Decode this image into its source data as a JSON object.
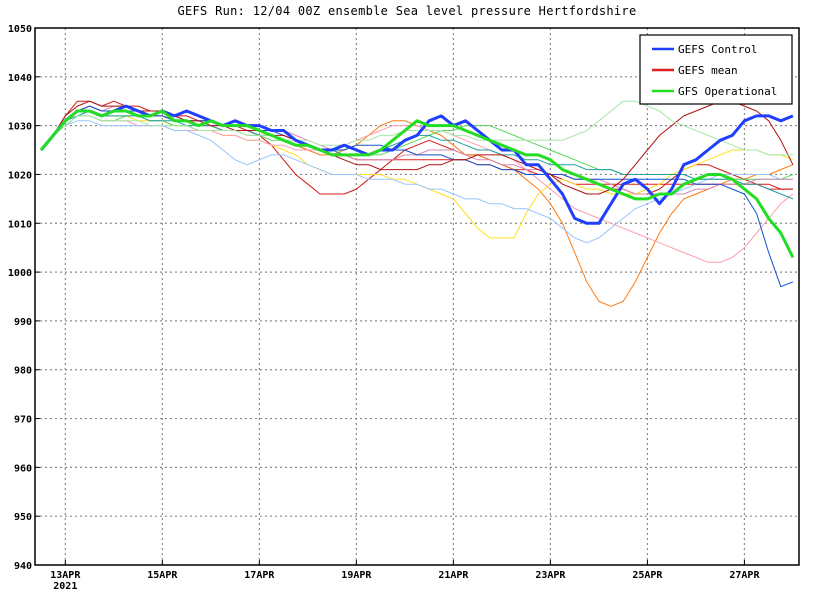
{
  "chart_data": {
    "type": "line",
    "title": "GEFS Run: 12/04 00Z ensemble Sea level pressure Hertfordshire",
    "xlabel": "",
    "ylabel": "",
    "x_range": [
      "2021-04-12T09:00",
      "2021-04-28T03:00"
    ],
    "ylim": [
      940,
      1050
    ],
    "yticks": [
      940,
      950,
      960,
      970,
      980,
      990,
      1000,
      1010,
      1020,
      1030,
      1040,
      1050
    ],
    "ytick_labels": [
      "940",
      "950",
      "960",
      "970",
      "980",
      "990",
      "1000",
      "1010",
      "1020",
      "1030",
      "1040",
      "1050"
    ],
    "xticks": [
      "2021-04-13",
      "2021-04-15",
      "2021-04-17",
      "2021-04-19",
      "2021-04-21",
      "2021-04-23",
      "2021-04-25",
      "2021-04-27"
    ],
    "xtick_labels": [
      "13APR",
      "15APR",
      "17APR",
      "19APR",
      "21APR",
      "23APR",
      "25APR",
      "27APR"
    ],
    "xtick_sublabel": "2021",
    "grid": true,
    "legend_position": "top-right",
    "x": [
      "2021-04-12T12:00",
      "2021-04-12T18:00",
      "2021-04-13T00:00",
      "2021-04-13T06:00",
      "2021-04-13T12:00",
      "2021-04-13T18:00",
      "2021-04-14T00:00",
      "2021-04-14T06:00",
      "2021-04-14T12:00",
      "2021-04-14T18:00",
      "2021-04-15T00:00",
      "2021-04-15T06:00",
      "2021-04-15T12:00",
      "2021-04-15T18:00",
      "2021-04-16T00:00",
      "2021-04-16T06:00",
      "2021-04-16T12:00",
      "2021-04-16T18:00",
      "2021-04-17T00:00",
      "2021-04-17T06:00",
      "2021-04-17T12:00",
      "2021-04-17T18:00",
      "2021-04-18T00:00",
      "2021-04-18T06:00",
      "2021-04-18T12:00",
      "2021-04-18T18:00",
      "2021-04-19T00:00",
      "2021-04-19T06:00",
      "2021-04-19T12:00",
      "2021-04-19T18:00",
      "2021-04-20T00:00",
      "2021-04-20T06:00",
      "2021-04-20T12:00",
      "2021-04-20T18:00",
      "2021-04-21T00:00",
      "2021-04-21T06:00",
      "2021-04-21T12:00",
      "2021-04-21T18:00",
      "2021-04-22T00:00",
      "2021-04-22T06:00",
      "2021-04-22T12:00",
      "2021-04-22T18:00",
      "2021-04-23T00:00",
      "2021-04-23T06:00",
      "2021-04-23T12:00",
      "2021-04-23T18:00",
      "2021-04-24T00:00",
      "2021-04-24T06:00",
      "2021-04-24T12:00",
      "2021-04-24T18:00",
      "2021-04-25T00:00",
      "2021-04-25T06:00",
      "2021-04-25T12:00",
      "2021-04-25T18:00",
      "2021-04-26T00:00",
      "2021-04-26T06:00",
      "2021-04-26T12:00",
      "2021-04-26T18:00",
      "2021-04-27T00:00",
      "2021-04-27T06:00",
      "2021-04-27T12:00",
      "2021-04-27T18:00",
      "2021-04-28T00:00"
    ],
    "series": [
      {
        "name": "GEFS Control",
        "color": "#1f3fff",
        "width": 3,
        "legend": true,
        "values": [
          1025,
          1028,
          1031,
          1033,
          1033,
          1032,
          1033,
          1034,
          1033,
          1032,
          1033,
          1032,
          1033,
          1032,
          1031,
          1030,
          1031,
          1030,
          1030,
          1029,
          1029,
          1027,
          1026,
          1025,
          1025,
          1026,
          1025,
          1024,
          1025,
          1025,
          1027,
          1028,
          1031,
          1032,
          1030,
          1031,
          1029,
          1027,
          1025,
          1025,
          1022,
          1022,
          1019,
          1016,
          1011,
          1010,
          1010,
          1014,
          1018,
          1019,
          1017,
          1014,
          1017,
          1022,
          1023,
          1025,
          1027,
          1028,
          1031,
          1032,
          1032,
          1031,
          1032
        ]
      },
      {
        "name": "GEFS mean",
        "color": "#e02020",
        "width": 1,
        "legend": true,
        "values": [
          1025,
          1028,
          1031,
          1033,
          1033,
          1032,
          1033,
          1033,
          1032,
          1032,
          1032,
          1031,
          1031,
          1030,
          1030,
          1029,
          1029,
          1029,
          1028,
          1028,
          1027,
          1026,
          1025,
          1025,
          1024,
          1024,
          1023,
          1023,
          1023,
          1023,
          1023,
          1023,
          1023,
          1023,
          1023,
          1023,
          1022,
          1022,
          1021,
          1021,
          1021,
          1020,
          1020,
          1020,
          1019,
          1019,
          1018,
          1018,
          1018,
          1018,
          1018,
          1018,
          1018,
          1018,
          1018,
          1018,
          1018,
          1018,
          1018,
          1018,
          1017,
          1017,
          1017
        ]
      },
      {
        "name": "GFS Operational",
        "color": "#22dd22",
        "width": 3,
        "legend": true,
        "values": [
          1025,
          1028,
          1031,
          1033,
          1033,
          1032,
          1033,
          1033,
          1032,
          1032,
          1033,
          1031,
          1031,
          1030,
          1031,
          1030,
          1030,
          1030,
          1029,
          1028,
          1027,
          1026,
          1026,
          1025,
          1024,
          1024,
          1024,
          1024,
          1025,
          1027,
          1029,
          1031,
          1030,
          1030,
          1030,
          1029,
          1028,
          1027,
          1026,
          1025,
          1024,
          1024,
          1023,
          1021,
          1020,
          1019,
          1018,
          1017,
          1016,
          1015,
          1015,
          1016,
          1016,
          1018,
          1019,
          1020,
          1020,
          1019,
          1017,
          1015,
          1011,
          1008,
          1003
        ]
      },
      {
        "name": "",
        "color": "#d01818",
        "width": 1,
        "legend": false,
        "values": [
          1025,
          1028,
          1032,
          1035,
          1035,
          1034,
          1035,
          1034,
          1034,
          1033,
          1033,
          1032,
          1032,
          1031,
          1031,
          1030,
          1030,
          1029,
          1028,
          1026,
          1023,
          1020,
          1018,
          1016,
          1016,
          1016,
          1017,
          1019,
          1021,
          1023,
          1025,
          1026,
          1027,
          1026,
          1025,
          1024,
          1024,
          1023,
          1022,
          1021,
          1020,
          1020,
          1020,
          1019,
          1018,
          1018,
          1018,
          1017,
          1017,
          1016,
          1016,
          1017,
          1019,
          1021,
          1022,
          1022,
          1021,
          1020,
          1019,
          1018,
          1018,
          1017,
          1017
        ]
      },
      {
        "name": "",
        "color": "#ff7a10",
        "width": 1,
        "legend": false,
        "values": [
          1025,
          1028,
          1031,
          1033,
          1034,
          1033,
          1033,
          1033,
          1032,
          1032,
          1032,
          1031,
          1031,
          1030,
          1030,
          1029,
          1029,
          1029,
          1029,
          1028,
          1027,
          1026,
          1025,
          1024,
          1024,
          1025,
          1026,
          1028,
          1030,
          1031,
          1031,
          1030,
          1029,
          1028,
          1026,
          1024,
          1024,
          1023,
          1022,
          1021,
          1019,
          1017,
          1014,
          1010,
          1004,
          998,
          994,
          993,
          994,
          998,
          1003,
          1008,
          1012,
          1015,
          1016,
          1017,
          1018,
          1019,
          1019,
          1020,
          1020,
          1021,
          1022
        ]
      },
      {
        "name": "",
        "color": "#ffe020",
        "width": 1,
        "legend": false,
        "values": [
          1025,
          1028,
          1031,
          1033,
          1033,
          1032,
          1032,
          1032,
          1031,
          1031,
          1031,
          1030,
          1030,
          1029,
          1029,
          1028,
          1028,
          1027,
          1027,
          1026,
          1025,
          1024,
          1022,
          1021,
          1020,
          1020,
          1020,
          1020,
          1020,
          1019,
          1019,
          1018,
          1017,
          1016,
          1015,
          1012,
          1009,
          1007,
          1007,
          1007,
          1012,
          1016,
          1018,
          1019,
          1018,
          1017,
          1017,
          1016,
          1016,
          1016,
          1017,
          1018,
          1020,
          1021,
          1022,
          1023,
          1024,
          1025,
          1025,
          1025,
          1024,
          1024,
          1023
        ]
      },
      {
        "name": "",
        "color": "#ff9fb0",
        "width": 1,
        "legend": false,
        "values": [
          1025,
          1028,
          1030,
          1032,
          1032,
          1031,
          1031,
          1031,
          1030,
          1030,
          1030,
          1029,
          1029,
          1029,
          1029,
          1028,
          1028,
          1027,
          1027,
          1026,
          1026,
          1025,
          1025,
          1025,
          1025,
          1026,
          1027,
          1028,
          1029,
          1030,
          1030,
          1030,
          1029,
          1029,
          1028,
          1027,
          1026,
          1025,
          1024,
          1023,
          1021,
          1019,
          1017,
          1015,
          1013,
          1012,
          1011,
          1010,
          1009,
          1008,
          1007,
          1006,
          1005,
          1004,
          1003,
          1002,
          1002,
          1003,
          1005,
          1008,
          1011,
          1014,
          1016
        ]
      },
      {
        "name": "",
        "color": "#99c6ff",
        "width": 1,
        "legend": false,
        "values": [
          1025,
          1028,
          1030,
          1031,
          1031,
          1030,
          1030,
          1030,
          1030,
          1030,
          1030,
          1029,
          1029,
          1028,
          1027,
          1025,
          1023,
          1022,
          1023,
          1024,
          1024,
          1023,
          1022,
          1021,
          1020,
          1020,
          1020,
          1019,
          1019,
          1019,
          1018,
          1018,
          1017,
          1017,
          1016,
          1015,
          1015,
          1014,
          1014,
          1013,
          1013,
          1012,
          1011,
          1009,
          1007,
          1006,
          1007,
          1009,
          1011,
          1013,
          1014,
          1015,
          1016,
          1017,
          1018,
          1019,
          1020,
          1020,
          1020,
          1020,
          1020,
          1019,
          1019
        ]
      },
      {
        "name": "",
        "color": "#58d858",
        "width": 1,
        "legend": false,
        "values": [
          1025,
          1028,
          1030,
          1032,
          1032,
          1031,
          1031,
          1032,
          1032,
          1031,
          1031,
          1030,
          1030,
          1029,
          1029,
          1029,
          1029,
          1028,
          1028,
          1027,
          1027,
          1026,
          1026,
          1025,
          1025,
          1024,
          1024,
          1024,
          1024,
          1025,
          1026,
          1027,
          1028,
          1029,
          1029,
          1030,
          1030,
          1030,
          1029,
          1028,
          1027,
          1026,
          1025,
          1024,
          1023,
          1022,
          1021,
          1021,
          1020,
          1020,
          1020,
          1020,
          1020,
          1020,
          1019,
          1019,
          1019,
          1019,
          1019,
          1019,
          1019,
          1019,
          1020
        ]
      },
      {
        "name": "",
        "color": "#d98ab5",
        "width": 1,
        "legend": false,
        "values": [
          1025,
          1028,
          1031,
          1033,
          1034,
          1033,
          1034,
          1034,
          1033,
          1033,
          1033,
          1032,
          1031,
          1030,
          1030,
          1030,
          1030,
          1030,
          1030,
          1029,
          1029,
          1028,
          1027,
          1026,
          1025,
          1024,
          1023,
          1023,
          1023,
          1023,
          1024,
          1024,
          1025,
          1025,
          1025,
          1024,
          1023,
          1023,
          1022,
          1022,
          1021,
          1021,
          1020,
          1020,
          1019,
          1019,
          1019,
          1018,
          1017,
          1016,
          1016,
          1016,
          1016,
          1016,
          1017,
          1017,
          1018,
          1018,
          1018,
          1019,
          1019,
          1019,
          1019
        ]
      },
      {
        "name": "",
        "color": "#20a0a0",
        "width": 1,
        "legend": false,
        "values": [
          1025,
          1028,
          1031,
          1032,
          1033,
          1032,
          1032,
          1032,
          1032,
          1031,
          1031,
          1031,
          1030,
          1030,
          1030,
          1029,
          1029,
          1029,
          1028,
          1028,
          1027,
          1026,
          1026,
          1025,
          1025,
          1024,
          1024,
          1024,
          1025,
          1026,
          1027,
          1028,
          1028,
          1027,
          1027,
          1026,
          1025,
          1025,
          1024,
          1024,
          1023,
          1023,
          1022,
          1022,
          1022,
          1021,
          1021,
          1021,
          1020,
          1020,
          1020,
          1020,
          1020,
          1020,
          1019,
          1019,
          1019,
          1019,
          1018,
          1018,
          1017,
          1016,
          1015
        ]
      },
      {
        "name": "",
        "color": "#1050d0",
        "width": 1,
        "legend": false,
        "values": [
          1025,
          1028,
          1031,
          1033,
          1034,
          1033,
          1033,
          1033,
          1033,
          1032,
          1032,
          1031,
          1031,
          1031,
          1031,
          1030,
          1030,
          1030,
          1029,
          1029,
          1028,
          1027,
          1026,
          1025,
          1025,
          1025,
          1026,
          1026,
          1026,
          1025,
          1025,
          1024,
          1024,
          1024,
          1023,
          1023,
          1022,
          1022,
          1021,
          1021,
          1020,
          1020,
          1020,
          1020,
          1019,
          1019,
          1019,
          1019,
          1019,
          1019,
          1019,
          1019,
          1019,
          1019,
          1018,
          1018,
          1018,
          1017,
          1016,
          1012,
          1004,
          997,
          998
        ]
      },
      {
        "name": "",
        "color": "#b01010",
        "width": 1,
        "legend": false,
        "values": [
          1025,
          1028,
          1032,
          1034,
          1035,
          1034,
          1034,
          1034,
          1033,
          1033,
          1033,
          1032,
          1031,
          1031,
          1030,
          1030,
          1029,
          1029,
          1029,
          1028,
          1028,
          1027,
          1026,
          1025,
          1024,
          1023,
          1022,
          1022,
          1021,
          1021,
          1021,
          1021,
          1022,
          1022,
          1023,
          1023,
          1024,
          1024,
          1024,
          1023,
          1022,
          1021,
          1020,
          1018,
          1017,
          1016,
          1016,
          1017,
          1019,
          1022,
          1025,
          1028,
          1030,
          1032,
          1033,
          1034,
          1035,
          1035,
          1034,
          1033,
          1031,
          1027,
          1022
        ]
      },
      {
        "name": "",
        "color": "#a8e6a8",
        "width": 1,
        "legend": false,
        "values": [
          1025,
          1028,
          1030,
          1032,
          1032,
          1031,
          1031,
          1031,
          1031,
          1030,
          1030,
          1030,
          1030,
          1029,
          1029,
          1029,
          1029,
          1028,
          1028,
          1028,
          1027,
          1027,
          1027,
          1026,
          1026,
          1026,
          1027,
          1027,
          1028,
          1028,
          1029,
          1029,
          1029,
          1029,
          1028,
          1028,
          1027,
          1027,
          1027,
          1027,
          1027,
          1027,
          1027,
          1027,
          1028,
          1029,
          1031,
          1033,
          1035,
          1035,
          1034,
          1033,
          1031,
          1030,
          1029,
          1028,
          1027,
          1026,
          1025,
          1025,
          1024,
          1024,
          1024
        ]
      }
    ],
    "legend": [
      {
        "label": "GEFS Control",
        "color": "#1f3fff"
      },
      {
        "label": "GEFS mean",
        "color": "#e02020"
      },
      {
        "label": "GFS Operational",
        "color": "#22dd22"
      }
    ]
  }
}
